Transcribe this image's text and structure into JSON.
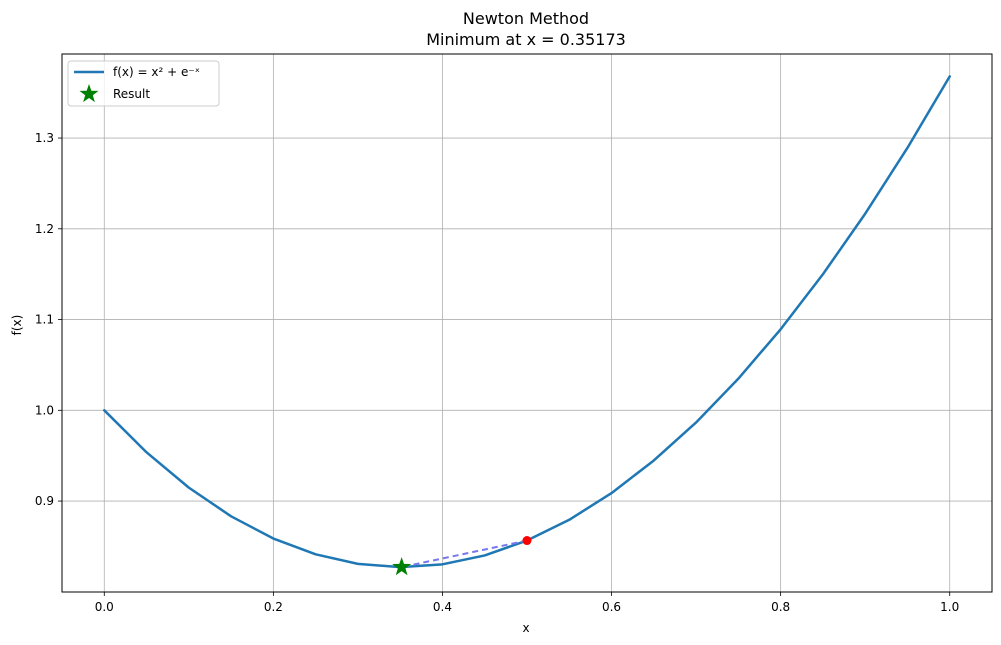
{
  "chart_data": {
    "type": "line",
    "title": "Newton Method",
    "subtitle": "Minimum at x = 0.35173",
    "xlabel": "x",
    "ylabel": "f(x)",
    "xlim": [
      -0.05,
      1.05
    ],
    "ylim": [
      0.7998,
      1.3926
    ],
    "xticks": [
      0.0,
      0.2,
      0.4,
      0.6,
      0.8,
      1.0
    ],
    "xtick_labels": [
      "0.0",
      "0.2",
      "0.4",
      "0.6",
      "0.8",
      "1.0"
    ],
    "yticks": [
      0.9,
      1.0,
      1.1,
      1.2,
      1.3
    ],
    "ytick_labels": [
      "0.9",
      "1.0",
      "1.1",
      "1.2",
      "1.3"
    ],
    "grid": true,
    "legend_position": "top-left",
    "series": [
      {
        "name": "f(x) = x² + e⁻ˣ",
        "color": "#1f77b4",
        "x": [
          0,
          0.05,
          0.1,
          0.15,
          0.2,
          0.25,
          0.3,
          0.35,
          0.4,
          0.45,
          0.5,
          0.55,
          0.6,
          0.65,
          0.7,
          0.75,
          0.8,
          0.85,
          0.9,
          0.95,
          1.0
        ],
        "y": [
          1.0,
          0.9537,
          0.9148,
          0.8832,
          0.8587,
          0.8413,
          0.8308,
          0.8272,
          0.8303,
          0.8401,
          0.8565,
          0.8794,
          0.9088,
          0.9447,
          0.9866,
          1.0349,
          1.0893,
          1.1499,
          1.2166,
          1.2892,
          1.3679
        ]
      }
    ],
    "iterations": {
      "color": "#7777ee",
      "x": [
        0.5,
        0.35173
      ],
      "y": [
        0.8565,
        0.8272
      ]
    },
    "start_point": {
      "x": 0.5,
      "y": 0.8565,
      "color": "#ff0000"
    },
    "result_point": {
      "name": "Result",
      "x": 0.35173,
      "y": 0.8272,
      "color": "#008000"
    }
  }
}
